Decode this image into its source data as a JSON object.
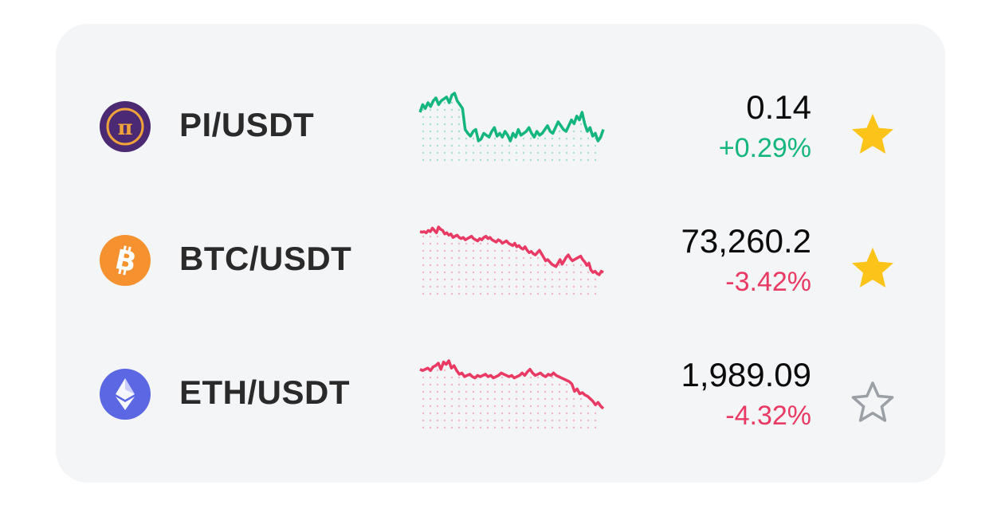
{
  "pairs": [
    {
      "symbol": "PI/USDT",
      "icon": "pi-network-icon",
      "price": "0.14",
      "change": "+0.29%",
      "trend": "up",
      "favorite": true,
      "sparkline": [
        70,
        62,
        66,
        60,
        64,
        58,
        55,
        62,
        58,
        56,
        54,
        60,
        52,
        50,
        58,
        62,
        66,
        88,
        92,
        95,
        90,
        88,
        100,
        98,
        92,
        94,
        96,
        90,
        86,
        95,
        92,
        96,
        90,
        94,
        100,
        92,
        96,
        88,
        94,
        92,
        90,
        86,
        92,
        96,
        90,
        94,
        92,
        88,
        84,
        90,
        92,
        86,
        80,
        84,
        88,
        90,
        84,
        78,
        82,
        74,
        78,
        70,
        82,
        90,
        86,
        95,
        92,
        100,
        96,
        88
      ]
    },
    {
      "symbol": "BTC/USDT",
      "icon": "bitcoin-icon",
      "price": "73,260.2",
      "change": "-3.42%",
      "trend": "down",
      "favorite": true,
      "sparkline": [
        60,
        61,
        60,
        62,
        58,
        60,
        54,
        58,
        62,
        52,
        56,
        58,
        64,
        62,
        66,
        64,
        70,
        68,
        66,
        70,
        72,
        70,
        74,
        72,
        70,
        68,
        72,
        74,
        76,
        72,
        74,
        70,
        68,
        72,
        70,
        74,
        76,
        78,
        74,
        76,
        80,
        78,
        76,
        80,
        82,
        84,
        80,
        86,
        84,
        88,
        90,
        86,
        92,
        96,
        94,
        98,
        100,
        96,
        92,
        98,
        104,
        110,
        108,
        112,
        116,
        118,
        120,
        114,
        108,
        116,
        110,
        104,
        100,
        106,
        110,
        108,
        106,
        104,
        102,
        108,
        112,
        118,
        114,
        126,
        130,
        128,
        132,
        134,
        128,
        130
      ]
    },
    {
      "symbol": "ETH/USDT",
      "icon": "ethereum-icon",
      "price": "1,989.09",
      "change": "-4.32%",
      "trend": "down",
      "favorite": false,
      "sparkline": [
        60,
        62,
        60,
        58,
        62,
        56,
        54,
        50,
        60,
        48,
        52,
        46,
        58,
        54,
        62,
        68,
        66,
        72,
        70,
        68,
        72,
        74,
        70,
        72,
        70,
        68,
        72,
        70,
        74,
        72,
        70,
        66,
        68,
        70,
        72,
        70,
        74,
        72,
        70,
        66,
        70,
        64,
        60,
        66,
        70,
        68,
        66,
        70,
        72,
        68,
        70,
        66,
        70,
        72,
        74,
        76,
        78,
        80,
        84,
        96,
        92,
        100,
        98,
        102,
        104,
        108,
        112,
        118,
        114,
        120,
        124
      ]
    }
  ],
  "colors": {
    "up": "#13b67d",
    "down": "#e83a63",
    "star_active": "#fcc419",
    "star_inactive": "#9aa0a6",
    "pi_bg": "#4b2a73",
    "btc_bg": "#f5922f",
    "eth_bg": "#5b67e3"
  }
}
